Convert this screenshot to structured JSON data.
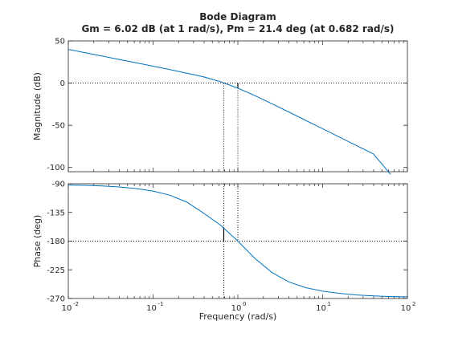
{
  "chart_data": {
    "type": "line",
    "title": "Bode Diagram",
    "subtitle": "Gm = 6.02 dB (at 1 rad/s),  Pm = 21.4 deg (at 0.682 rad/s)",
    "xlabel": "Frequency  (rad/s)",
    "xscale": "log",
    "xlim": [
      0.01,
      100
    ],
    "x_ticks": [
      0.01,
      0.1,
      1,
      10,
      100
    ],
    "x_tick_labels": [
      {
        "base": "10",
        "exp": "-2"
      },
      {
        "base": "10",
        "exp": "-1"
      },
      {
        "base": "10",
        "exp": "0"
      },
      {
        "base": "10",
        "exp": "1"
      },
      {
        "base": "10",
        "exp": "2"
      }
    ],
    "line_color": "#0072bd",
    "magnitude": {
      "ylabel": "Magnitude (dB)",
      "ylim": [
        -105,
        50
      ],
      "y_ticks": [
        50,
        0,
        -50,
        -100
      ],
      "y_tick_labels": [
        "50",
        "0",
        "-50",
        "-100"
      ],
      "reference_level": 0,
      "x": [
        0.01,
        0.0158,
        0.0251,
        0.0398,
        0.0631,
        0.1,
        0.158,
        0.251,
        0.398,
        0.631,
        1,
        1.58,
        2.51,
        3.98,
        6.31,
        10,
        15.8,
        25.1,
        39.8,
        63.1
      ],
      "y": [
        40,
        36,
        32,
        28,
        24,
        20,
        16,
        11.8,
        7.3,
        1.5,
        -6,
        -14.8,
        -24.4,
        -34.2,
        -44.1,
        -54,
        -64,
        -74,
        -84,
        -108
      ]
    },
    "phase": {
      "ylabel": "Phase (deg)",
      "ylim": [
        -270,
        -90
      ],
      "y_ticks": [
        -90,
        -135,
        -180,
        -225,
        -270
      ],
      "y_tick_labels": [
        "-90",
        "-135",
        "-180",
        "-225",
        "-270"
      ],
      "reference_level": -180,
      "x": [
        0.01,
        0.0158,
        0.0251,
        0.0398,
        0.0631,
        0.1,
        0.158,
        0.251,
        0.398,
        0.631,
        1,
        1.58,
        2.51,
        3.98,
        6.31,
        10,
        15.8,
        25.1,
        39.8,
        63.1,
        100
      ],
      "y": [
        -92,
        -92.5,
        -93.5,
        -95,
        -97.5,
        -101.5,
        -108,
        -119,
        -136.5,
        -155.5,
        -180,
        -207,
        -229,
        -244,
        -253,
        -258.5,
        -262,
        -264.5,
        -266,
        -267,
        -267.5
      ]
    },
    "markers": {
      "gain_margin": {
        "frequency": 1,
        "value_db": 6.02,
        "phase_at": -180
      },
      "phase_margin": {
        "frequency": 0.682,
        "value_deg": 21.4,
        "phase_at": -158.6
      }
    },
    "grid": false
  }
}
